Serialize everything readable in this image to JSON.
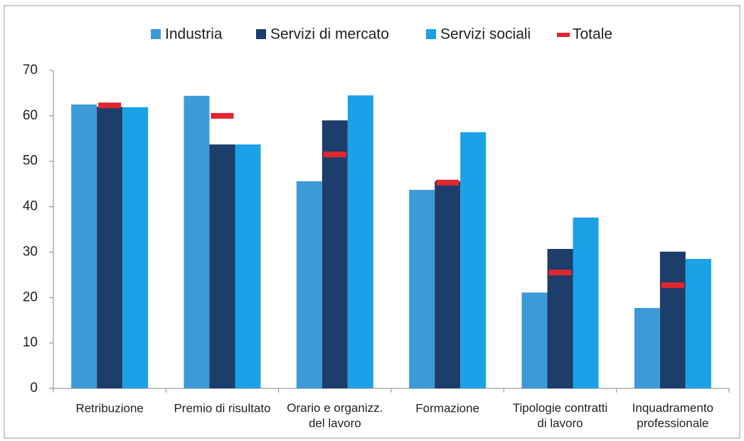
{
  "chart_data": {
    "type": "bar",
    "categories": [
      "Retribuzione",
      "Premio di risultato",
      "Orario e organizz.\ndel lavoro",
      "Formazione",
      "Tipologie contratti\ndi lavoro",
      "Inquadramento\nprofessionale"
    ],
    "series": [
      {
        "name": "Industria",
        "color": "#3d9ad8",
        "type": "bar",
        "values": [
          62.5,
          64.4,
          45.6,
          43.7,
          21.1,
          17.7
        ]
      },
      {
        "name": "Servizi di mercato",
        "color": "#1d3d6b",
        "type": "bar",
        "values": [
          62,
          53.7,
          59,
          45.6,
          30.7,
          30.1
        ]
      },
      {
        "name": "Servizi sociali",
        "color": "#1aa1e6",
        "type": "bar",
        "values": [
          61.9,
          53.7,
          64.5,
          56.4,
          37.6,
          28.5
        ]
      },
      {
        "name": "Totale",
        "color": "#e0262e",
        "type": "marker",
        "values": [
          62.3,
          60,
          51.5,
          45.3,
          25.5,
          22.7
        ]
      }
    ],
    "ylim": [
      0,
      70
    ],
    "yticks": [
      0,
      10,
      20,
      30,
      40,
      50,
      60,
      70
    ],
    "legend": "top"
  }
}
